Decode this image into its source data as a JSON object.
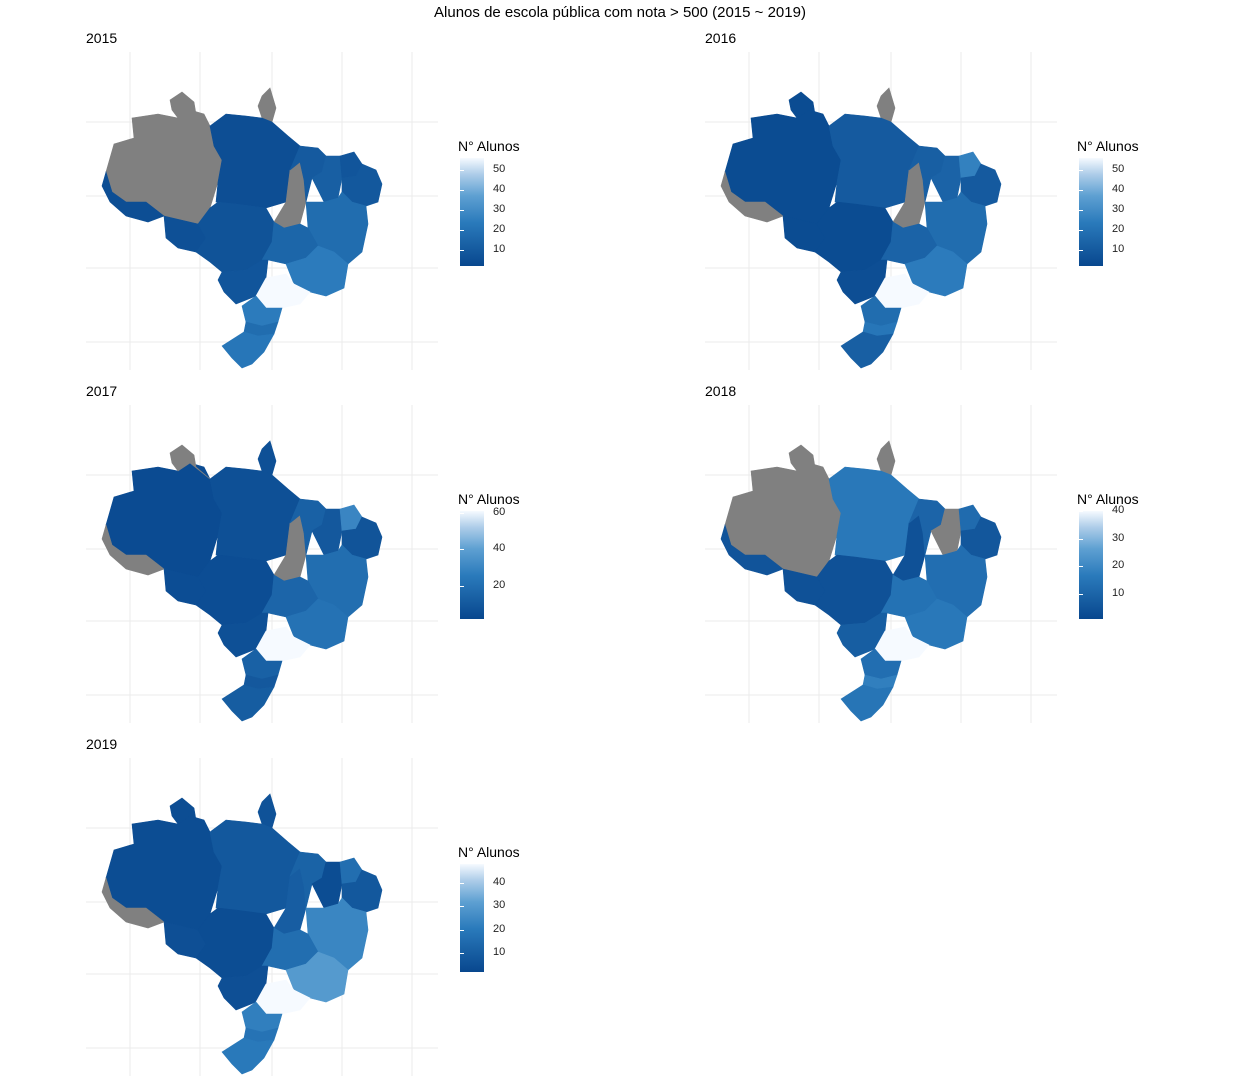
{
  "title": "Alunos de escola pública com nota > 500 (2015 ~ 2019)",
  "colors": {
    "low": "#08478e",
    "mid": "#2a7abb",
    "high": "#f6faff",
    "missing": "#808080",
    "grid": "#ebebeb"
  },
  "panels": [
    {
      "year": "2015",
      "legend": {
        "title": "N° Alunos",
        "min": 2,
        "max": 56,
        "ticks": [
          10,
          20,
          30,
          40,
          50
        ]
      },
      "regions": {
        "am": null,
        "rr": null,
        "ap": null,
        "to": null,
        "ac": 5,
        "ro": 6,
        "mt": 7,
        "pa": 5,
        "ma": 10,
        "pi": 12,
        "ce": 8,
        "nordeste": 9,
        "ba": 18,
        "mg": 24,
        "go": 15,
        "ms": 8,
        "sp": 56,
        "pr": 24,
        "sc": 18,
        "rs": 22
      }
    },
    {
      "year": "2016",
      "legend": {
        "title": "N° Alunos",
        "min": 2,
        "max": 56,
        "ticks": [
          10,
          20,
          30,
          40,
          50
        ]
      },
      "regions": {
        "am": 4,
        "rr": 4,
        "ap": null,
        "to": null,
        "ac": null,
        "ro": 4,
        "mt": 4,
        "pa": 10,
        "ma": 12,
        "pi": 14,
        "ce": 26,
        "nordeste": 10,
        "ba": 18,
        "mg": 24,
        "go": 14,
        "ms": 5,
        "sp": 56,
        "pr": 18,
        "sc": 22,
        "rs": 12
      }
    },
    {
      "year": "2017",
      "legend": {
        "title": "N° Alunos",
        "min": 2,
        "max": 61,
        "ticks": [
          20,
          40,
          60
        ]
      },
      "regions": {
        "am": 4,
        "rr": null,
        "ap": 6,
        "to": null,
        "ac": null,
        "ro": 5,
        "mt": 5,
        "pa": 6,
        "ma": 14,
        "pi": 10,
        "ce": 30,
        "nordeste": 8,
        "ba": 20,
        "mg": 22,
        "go": 16,
        "ms": 6,
        "sp": 61,
        "pr": 14,
        "sc": 10,
        "rs": 12
      }
    },
    {
      "year": "2018",
      "legend": {
        "title": "N° Alunos",
        "min": 1,
        "max": 40,
        "ticks": [
          10,
          20,
          30,
          40
        ]
      },
      "regions": {
        "am": null,
        "rr": null,
        "ap": null,
        "to": 4,
        "ac": 5,
        "ro": 4,
        "mt": 4,
        "pa": 16,
        "ma": 10,
        "pi": null,
        "ce": 12,
        "nordeste": 6,
        "ba": 13,
        "mg": 16,
        "go": 14,
        "ms": 8,
        "sp": 40,
        "pr": 13,
        "sc": 18,
        "rs": 15
      }
    },
    {
      "year": "2019",
      "legend": {
        "title": "N° Alunos",
        "min": 2,
        "max": 48,
        "ticks": [
          10,
          20,
          30,
          40
        ]
      },
      "regions": {
        "am": 4,
        "rr": 4,
        "ap": 6,
        "to": 10,
        "ac": null,
        "ro": 5,
        "mt": 4,
        "pa": 8,
        "ma": 12,
        "pi": 4,
        "ce": 16,
        "nordeste": 8,
        "ba": 24,
        "mg": 30,
        "go": 16,
        "ms": 5,
        "sp": 48,
        "pr": 22,
        "sc": 18,
        "rs": 20
      }
    }
  ]
}
